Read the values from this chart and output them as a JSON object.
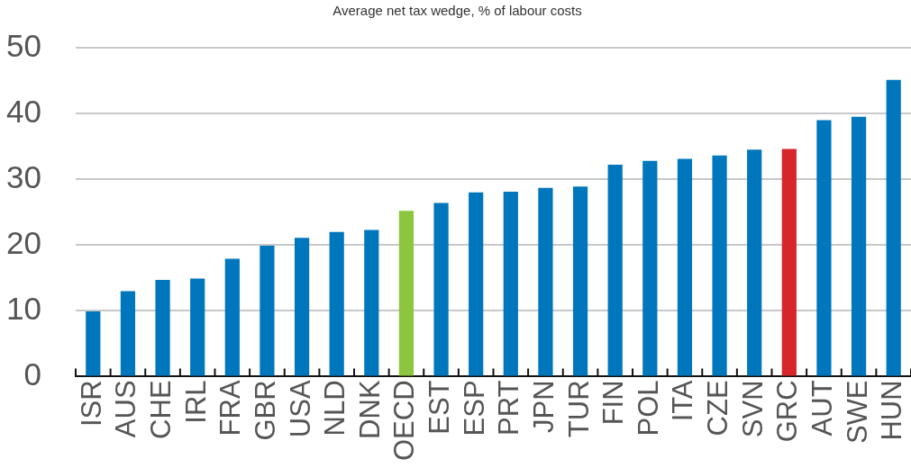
{
  "chart_data": {
    "type": "bar",
    "title": "Average net tax wedge, % of labour costs",
    "categories": [
      "ISR",
      "AUS",
      "CHE",
      "IRL",
      "FRA",
      "GBR",
      "USA",
      "NLD",
      "DNK",
      "OECD",
      "EST",
      "ESP",
      "PRT",
      "JPN",
      "TUR",
      "FIN",
      "POL",
      "ITA",
      "CZE",
      "SVN",
      "GRC",
      "AUT",
      "SWE",
      "HUN"
    ],
    "values": [
      9.9,
      13.0,
      14.7,
      14.9,
      17.9,
      19.9,
      21.1,
      22.0,
      22.3,
      25.2,
      26.4,
      28.0,
      28.1,
      28.7,
      28.9,
      32.2,
      32.8,
      33.1,
      33.6,
      34.5,
      34.6,
      39.0,
      39.5,
      45.1
    ],
    "colors": [
      "#0077bd",
      "#0077bd",
      "#0077bd",
      "#0077bd",
      "#0077bd",
      "#0077bd",
      "#0077bd",
      "#0077bd",
      "#0077bd",
      "#8cc63f",
      "#0077bd",
      "#0077bd",
      "#0077bd",
      "#0077bd",
      "#0077bd",
      "#0077bd",
      "#0077bd",
      "#0077bd",
      "#0077bd",
      "#0077bd",
      "#d7262b",
      "#0077bd",
      "#0077bd",
      "#0077bd"
    ],
    "ylim": [
      0,
      50
    ],
    "yticks": [
      0,
      10,
      20,
      30,
      40,
      50
    ],
    "grid": "y"
  }
}
